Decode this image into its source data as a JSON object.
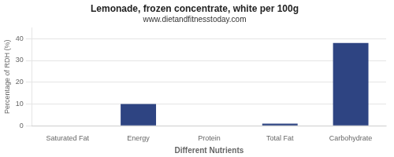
{
  "chart_data": {
    "type": "bar",
    "title": "Lemonade, frozen concentrate, white per 100g",
    "subtitle": "www.dietandfitnesstoday.com",
    "xlabel": "Different Nutrients",
    "ylabel": "Percentage of RDH (%)",
    "categories": [
      "Saturated Fat",
      "Energy",
      "Protein",
      "Total Fat",
      "Carbohydrate"
    ],
    "values": [
      0,
      10,
      0,
      1,
      38
    ],
    "color": "#2e4482",
    "ylim": [
      0,
      45
    ],
    "yticks": [
      0,
      10,
      20,
      30,
      40
    ],
    "grid": true
  }
}
